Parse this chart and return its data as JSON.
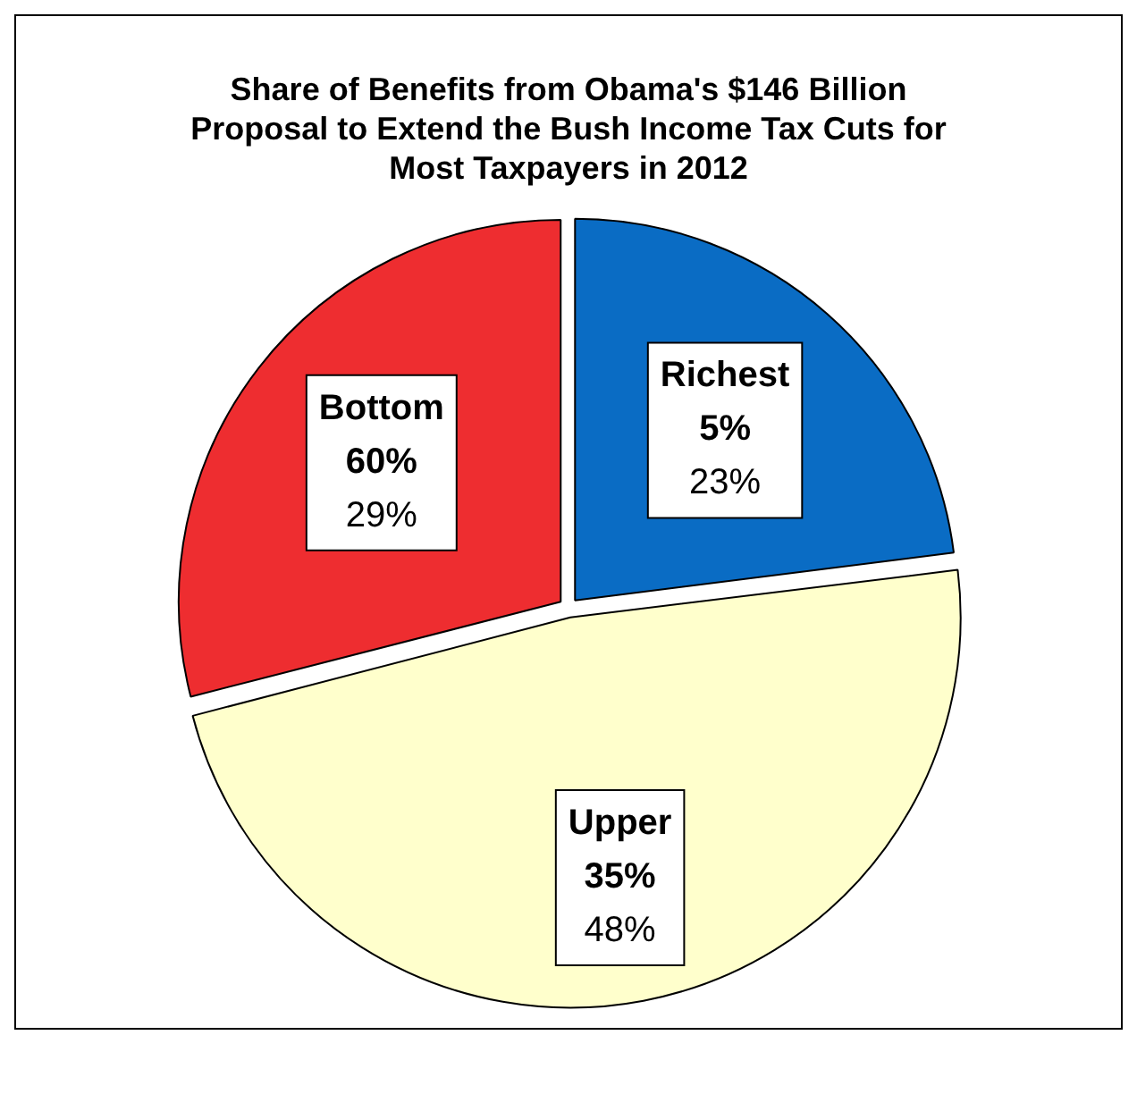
{
  "chart_data": {
    "type": "pie",
    "title": "Share of Benefits from Obama's $146 Billion Proposal to Extend the Bush Income Tax Cuts for Most Taxpayers in 2012",
    "categories": [
      "Richest 5%",
      "Upper 35%",
      "Bottom 60%"
    ],
    "values": [
      23,
      48,
      29
    ],
    "colors": [
      "#0a6cc4",
      "#ffffcc",
      "#ee2d30"
    ],
    "value_labels": [
      "23%",
      "48%",
      "29%"
    ],
    "legend": false
  }
}
